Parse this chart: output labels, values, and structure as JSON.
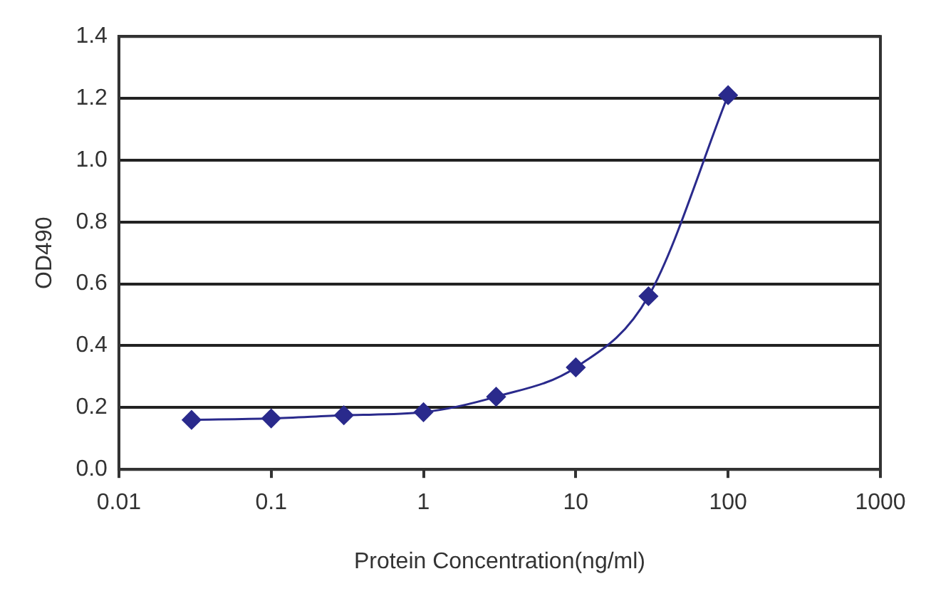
{
  "chart_data": {
    "type": "line",
    "xlabel": "Protein Concentration(ng/ml)",
    "ylabel": "OD490",
    "x": [
      0.03,
      0.1,
      0.3,
      1,
      3,
      10,
      30,
      100
    ],
    "series": [
      {
        "color": "#2a2a8c",
        "values": [
          0.16,
          0.165,
          0.175,
          0.185,
          0.235,
          0.33,
          0.56,
          1.21
        ]
      }
    ],
    "log": "x",
    "xlim": [
      0.01,
      1000
    ],
    "xticks": [
      0.01,
      0.1,
      1,
      10,
      100,
      1000
    ],
    "ylim": [
      0,
      1.4
    ],
    "yticks": [
      {
        "value": 0,
        "label": "0.0"
      },
      {
        "value": 0.2,
        "label": "0.2"
      },
      {
        "value": 0.4,
        "label": "0.4"
      },
      {
        "value": 0.6,
        "label": "0.6"
      },
      {
        "value": 0.8,
        "label": "0.8"
      },
      {
        "value": 1,
        "label": "1.0"
      },
      {
        "value": 1.2,
        "label": "1.2"
      },
      {
        "value": 1.4,
        "label": "1.4"
      }
    ],
    "grid": "y",
    "legend": false,
    "marker": "diamond",
    "line_style": "solid"
  }
}
